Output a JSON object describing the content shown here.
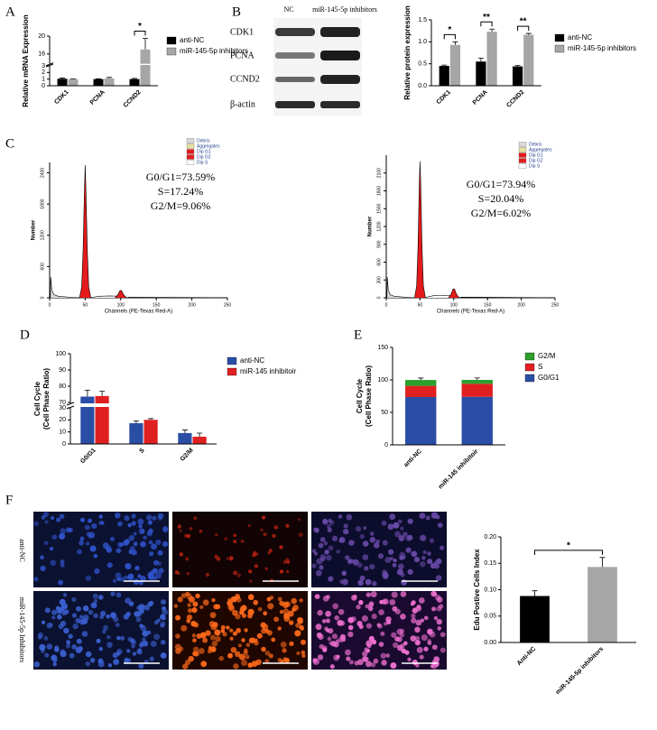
{
  "panel_labels": [
    "A",
    "B",
    "C",
    "D",
    "E",
    "F"
  ],
  "blot": {
    "lanes": [
      "NC",
      "miR-145-5p inhibitors"
    ],
    "proteins": [
      "CDK1",
      "PCNA",
      "CCND2",
      "β-actin"
    ]
  },
  "microscopy": {
    "rows": [
      "anti-NC",
      "miR-145-5p Inhibitors"
    ]
  },
  "chart_data": [
    {
      "type": "bar",
      "y_label": [
        "Relative mRNA Expression"
      ],
      "categories": [
        "CDK1",
        "PCNA",
        "CCND2"
      ],
      "series": [
        {
          "name": "anti-NC",
          "color": "#000000",
          "values": [
            1.05,
            1.0,
            1.0
          ],
          "errors": [
            0.12,
            0.05,
            0.1
          ]
        },
        {
          "name": "miR-145-5p inhibitors",
          "color": "#a6a6a6",
          "values": [
            1.0,
            1.1,
            17
          ],
          "errors": [
            0.05,
            0.15,
            2.5
          ]
        }
      ],
      "ylim": [
        0,
        20
      ],
      "ybreak": [
        3,
        14
      ],
      "yticks": [
        0,
        1,
        2,
        3,
        16,
        20
      ],
      "significance": [
        {
          "category": "CCND2",
          "text": "*"
        }
      ]
    },
    {
      "type": "bar",
      "y_label": [
        "Relative protein expression"
      ],
      "categories": [
        "CDK1",
        "PCNA",
        "CCND2"
      ],
      "series": [
        {
          "name": "anti-NC",
          "color": "#000000",
          "values": [
            0.45,
            0.55,
            0.44
          ],
          "errors": [
            0.02,
            0.08,
            0.02
          ]
        },
        {
          "name": "miR-145-5p inhibitors",
          "color": "#a6a6a6",
          "values": [
            0.93,
            1.23,
            1.16
          ],
          "errors": [
            0.07,
            0.06,
            0.03
          ]
        }
      ],
      "ylim": [
        0,
        1.5
      ],
      "yticks": [
        {
          "value": 0,
          "label": "0.0"
        },
        0.5,
        {
          "value": 1,
          "label": "1.0"
        },
        1.5
      ],
      "significance": [
        {
          "category": "CDK1",
          "text": "*"
        },
        {
          "category": "PCNA",
          "text": "**"
        },
        {
          "category": "CCND2",
          "text": "**"
        }
      ]
    },
    {
      "type": "cytometry",
      "x_label": "Channels (PE-Texas Red-A)",
      "y_label": [
        "Number"
      ],
      "xlim": [
        0,
        250
      ],
      "xticks": [
        0,
        50,
        100,
        150,
        200,
        250
      ],
      "ylim": [
        0,
        2600
      ],
      "yticks": [
        0,
        600,
        1200,
        1800,
        2400
      ],
      "annotations": [
        "G0/G1=73.59%",
        "S=17.24%",
        "G2/M=9.06%"
      ],
      "series": [
        {
          "name": "Debris",
          "color": "#d9d9d9",
          "x": [
            1,
            1.5,
            3,
            6,
            12,
            25,
            40
          ],
          "values": [
            0,
            400,
            150,
            60,
            30,
            15,
            0
          ]
        },
        {
          "name": "Aggregates",
          "color": "#e8e0a0",
          "x": [
            110,
            150,
            200,
            250
          ],
          "values": [
            10,
            8,
            5,
            2
          ]
        },
        {
          "name": "Dip G1",
          "color": "#e41a1c",
          "x": [
            42,
            45,
            47,
            49,
            50,
            51,
            53,
            55,
            58
          ],
          "values": [
            0,
            200,
            900,
            2100,
            2550,
            2100,
            900,
            200,
            0
          ]
        },
        {
          "name": "Dip G2",
          "color": "#e41a1c",
          "x": [
            92,
            96,
            99,
            101,
            104,
            108
          ],
          "values": [
            0,
            60,
            140,
            140,
            60,
            0
          ]
        },
        {
          "name": "Dip S",
          "color": "#ffffff",
          "x": [
            55,
            70,
            85,
            100,
            110
          ],
          "values": [
            0,
            30,
            35,
            30,
            0
          ]
        }
      ]
    },
    {
      "type": "cytometry",
      "x_label": "Channels (PE-Texas Red-A)",
      "y_label": [
        "Number"
      ],
      "xlim": [
        0,
        250
      ],
      "xticks": [
        0,
        50,
        100,
        150,
        200,
        250
      ],
      "ylim": [
        0,
        2400
      ],
      "yticks": [
        0,
        300,
        600,
        900,
        1200,
        1500,
        1800,
        2100
      ],
      "annotations": [
        "G0/G1=73.94%",
        "S=20.04%",
        "G2/M=6.02%"
      ],
      "series": [
        {
          "name": "Debris",
          "color": "#d9d9d9",
          "x": [
            1,
            1.5,
            3,
            6,
            12,
            25,
            40
          ],
          "values": [
            0,
            350,
            130,
            50,
            25,
            12,
            0
          ]
        },
        {
          "name": "Aggregates",
          "color": "#e8e0a0",
          "x": [
            110,
            150,
            200,
            250
          ],
          "values": [
            10,
            8,
            5,
            2
          ]
        },
        {
          "name": "Dip G1",
          "color": "#e41a1c",
          "x": [
            42,
            45,
            47,
            49,
            50,
            51,
            53,
            55,
            58
          ],
          "values": [
            0,
            200,
            850,
            1950,
            2300,
            1950,
            850,
            200,
            0
          ]
        },
        {
          "name": "Dip G2",
          "color": "#e41a1c",
          "x": [
            92,
            96,
            99,
            101,
            104,
            108
          ],
          "values": [
            0,
            60,
            150,
            150,
            60,
            0
          ]
        },
        {
          "name": "Dip S",
          "color": "#ffffff",
          "x": [
            55,
            70,
            85,
            100,
            110
          ],
          "values": [
            0,
            35,
            40,
            35,
            0
          ]
        }
      ]
    },
    {
      "type": "bar",
      "y_label": [
        "Cell Cycle",
        "(Cell Phase Ratio)"
      ],
      "categories": [
        "G0/G1",
        "S",
        "G2/M"
      ],
      "series": [
        {
          "name": "anti-NC",
          "color": "#2a4ea6",
          "values": [
            73.59,
            17.24,
            9.06
          ],
          "errors": [
            4,
            2,
            2.5
          ]
        },
        {
          "name": "miR-145 inhibitoir",
          "color": "#e02020",
          "values": [
            73.94,
            20.04,
            6.02
          ],
          "errors": [
            3,
            1,
            3
          ]
        }
      ],
      "ylim": [
        0,
        100
      ],
      "ybreak": [
        30,
        70
      ],
      "yticks": [
        0,
        10,
        20,
        30,
        70,
        80,
        90,
        100
      ]
    },
    {
      "type": "stacked_bar",
      "y_label": [
        "Cell Cycle",
        "(Cell Phase Ratio)"
      ],
      "categories": [
        "anti-NC",
        "miR-145 inhibitoir"
      ],
      "series": [
        {
          "name": "G0/G1",
          "color": "#2a4ea6",
          "values": [
            73.59,
            73.94
          ],
          "errors": [
            3,
            3
          ]
        },
        {
          "name": "S",
          "color": "#e02020",
          "values": [
            17.24,
            20.04
          ],
          "errors": [
            2,
            2
          ]
        },
        {
          "name": "G2/M",
          "color": "#2ca02c",
          "values": [
            9.06,
            6.02
          ],
          "errors": [
            3,
            3
          ]
        }
      ],
      "ylim": [
        0,
        150
      ],
      "yticks": [
        0,
        50,
        100,
        150
      ]
    },
    {
      "type": "bar",
      "y_label": [
        "Edu Postive Cells Index"
      ],
      "categories": [
        "Anti-NC",
        "miR-145-5p inhibitors"
      ],
      "values": [
        0.088,
        0.143
      ],
      "colors": [
        "#000000",
        "#a6a6a6"
      ],
      "errors": [
        0.01,
        0.018
      ],
      "ylim": [
        0,
        0.2
      ],
      "yticks": [
        {
          "value": 0,
          "label": "0.00"
        },
        0.05,
        {
          "value": 0.1,
          "label": "0.10"
        },
        0.15,
        {
          "value": 0.2,
          "label": "0.20"
        }
      ],
      "significance": [
        {
          "categories": [
            "Anti-NC",
            "miR-145-5p inhibitors"
          ],
          "text": "*"
        }
      ]
    }
  ]
}
